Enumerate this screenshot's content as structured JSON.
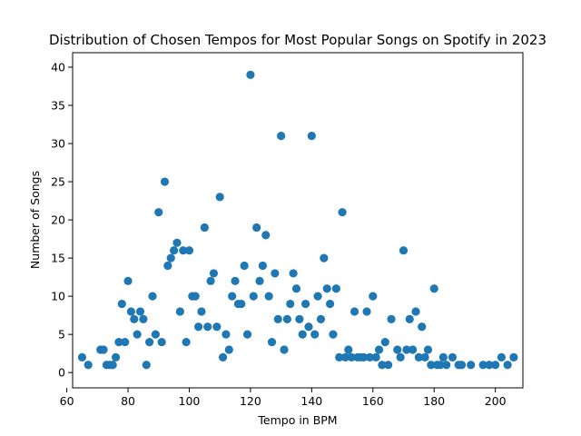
{
  "chart_data": {
    "type": "scatter",
    "title": "Distribution of Chosen Tempos for Most Popular Songs on Spotify in 2023",
    "xlabel": "Tempo in BPM",
    "ylabel": "Number of Songs",
    "xlim": [
      61.9,
      209.0
    ],
    "ylim": [
      -2.0,
      41.9
    ],
    "xticks": [
      60,
      80,
      100,
      120,
      140,
      160,
      180,
      200
    ],
    "yticks": [
      0,
      5,
      10,
      15,
      20,
      25,
      30,
      35,
      40
    ],
    "grid": false,
    "marker_color": "#1f77b4",
    "points": [
      [
        65,
        2
      ],
      [
        67,
        1
      ],
      [
        71,
        3
      ],
      [
        72,
        3
      ],
      [
        73,
        1
      ],
      [
        74,
        1
      ],
      [
        75,
        1
      ],
      [
        76,
        2
      ],
      [
        77,
        4
      ],
      [
        78,
        9
      ],
      [
        79,
        4
      ],
      [
        80,
        12
      ],
      [
        81,
        8
      ],
      [
        82,
        7
      ],
      [
        83,
        5
      ],
      [
        84,
        8
      ],
      [
        85,
        7
      ],
      [
        86,
        1
      ],
      [
        87,
        4
      ],
      [
        88,
        10
      ],
      [
        89,
        5
      ],
      [
        90,
        21
      ],
      [
        91,
        4
      ],
      [
        92,
        25
      ],
      [
        93,
        14
      ],
      [
        94,
        15
      ],
      [
        95,
        16
      ],
      [
        96,
        17
      ],
      [
        97,
        8
      ],
      [
        98,
        16
      ],
      [
        99,
        4
      ],
      [
        100,
        16
      ],
      [
        101,
        10
      ],
      [
        102,
        10
      ],
      [
        103,
        6
      ],
      [
        104,
        8
      ],
      [
        105,
        19
      ],
      [
        106,
        6
      ],
      [
        107,
        12
      ],
      [
        108,
        13
      ],
      [
        109,
        6
      ],
      [
        110,
        23
      ],
      [
        111,
        2
      ],
      [
        112,
        5
      ],
      [
        113,
        3
      ],
      [
        114,
        10
      ],
      [
        115,
        12
      ],
      [
        116,
        9
      ],
      [
        117,
        9
      ],
      [
        118,
        14
      ],
      [
        119,
        5
      ],
      [
        120,
        39
      ],
      [
        121,
        10
      ],
      [
        122,
        19
      ],
      [
        123,
        12
      ],
      [
        124,
        14
      ],
      [
        125,
        18
      ],
      [
        126,
        10
      ],
      [
        127,
        4
      ],
      [
        128,
        13
      ],
      [
        129,
        7
      ],
      [
        130,
        31
      ],
      [
        131,
        3
      ],
      [
        132,
        7
      ],
      [
        133,
        9
      ],
      [
        134,
        13
      ],
      [
        135,
        11
      ],
      [
        136,
        7
      ],
      [
        137,
        5
      ],
      [
        138,
        9
      ],
      [
        139,
        6
      ],
      [
        140,
        31
      ],
      [
        141,
        5
      ],
      [
        142,
        10
      ],
      [
        143,
        7
      ],
      [
        144,
        15
      ],
      [
        145,
        11
      ],
      [
        146,
        9
      ],
      [
        147,
        5
      ],
      [
        148,
        11
      ],
      [
        149,
        2
      ],
      [
        150,
        21
      ],
      [
        151,
        2
      ],
      [
        152,
        3
      ],
      [
        153,
        2
      ],
      [
        154,
        8
      ],
      [
        155,
        2
      ],
      [
        156,
        2
      ],
      [
        157,
        2
      ],
      [
        158,
        8
      ],
      [
        159,
        2
      ],
      [
        160,
        10
      ],
      [
        161,
        2
      ],
      [
        162,
        3
      ],
      [
        163,
        1
      ],
      [
        164,
        4
      ],
      [
        165,
        1
      ],
      [
        166,
        7
      ],
      [
        168,
        3
      ],
      [
        169,
        2
      ],
      [
        170,
        16
      ],
      [
        171,
        3
      ],
      [
        172,
        7
      ],
      [
        173,
        3
      ],
      [
        174,
        8
      ],
      [
        175,
        2
      ],
      [
        176,
        6
      ],
      [
        177,
        2
      ],
      [
        178,
        3
      ],
      [
        179,
        1
      ],
      [
        180,
        11
      ],
      [
        181,
        1
      ],
      [
        182,
        1
      ],
      [
        183,
        2
      ],
      [
        184,
        1
      ],
      [
        186,
        2
      ],
      [
        188,
        1
      ],
      [
        189,
        1
      ],
      [
        192,
        1
      ],
      [
        196,
        1
      ],
      [
        198,
        1
      ],
      [
        200,
        1
      ],
      [
        202,
        2
      ],
      [
        204,
        1
      ],
      [
        206,
        2
      ]
    ]
  }
}
